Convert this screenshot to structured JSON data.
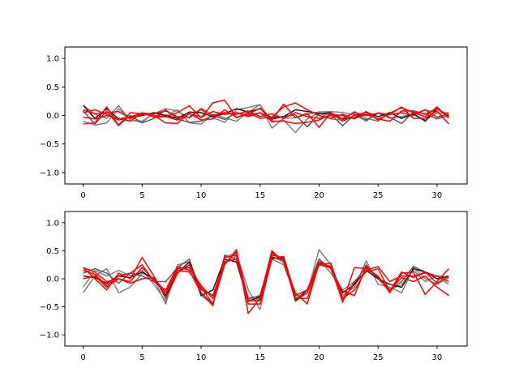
{
  "chart_data": [
    {
      "type": "line",
      "title": "",
      "xlabel": "",
      "ylabel": "",
      "xlim": [
        -1.55,
        32.55
      ],
      "ylim": [
        -1.2,
        1.2
      ],
      "xticks": [
        0,
        5,
        10,
        15,
        20,
        25,
        30
      ],
      "yticks": [
        -1.0,
        -0.5,
        0.0,
        0.5,
        1.0
      ],
      "ytick_labels": [
        "−1.0",
        "−0.5",
        "0.0",
        "0.5",
        "1.0"
      ],
      "grid": false,
      "series": [
        {
          "color": "#7f7f7f",
          "values": [
            0.18,
            0.02,
            -0.05,
            0.17,
            -0.08,
            -0.1,
            0.03,
            0.12,
            0.08,
            -0.05,
            0.1,
            -0.04,
            -0.12,
            0.1,
            0.14,
            0.19,
            -0.22,
            -0.05,
            -0.04,
            0.02,
            0.06,
            0.07,
            0.05,
            0.02,
            -0.1,
            0.05,
            -0.05,
            -0.02,
            0.03,
            0.1,
            0.05,
            0.02
          ]
        },
        {
          "color": "#7f7f7f",
          "values": [
            -0.1,
            -0.17,
            -0.13,
            0.12,
            -0.08,
            -0.12,
            0.04,
            0.0,
            0.1,
            -0.13,
            -0.15,
            0.02,
            -0.04,
            -0.1,
            0.06,
            0.19,
            -0.12,
            -0.08,
            -0.3,
            -0.06,
            0.05,
            -0.06,
            -0.08,
            0.07,
            -0.05,
            -0.1,
            0.05,
            -0.05,
            0.02,
            -0.08,
            0.04,
            0.05
          ]
        },
        {
          "color": "#595959",
          "values": [
            0.08,
            -0.15,
            0.08,
            -0.18,
            0.0,
            -0.13,
            -0.05,
            0.1,
            -0.06,
            -0.12,
            -0.1,
            0.0,
            -0.07,
            0.05,
            0.0,
            0.05,
            -0.03,
            -0.02,
            0.01,
            -0.2,
            0.03,
            0.02,
            -0.18,
            0.02,
            -0.08,
            0.04,
            -0.03,
            -0.14,
            0.06,
            0.03,
            -0.06,
            0.0
          ]
        },
        {
          "color": "#1a1a1a",
          "values": [
            0.18,
            -0.05,
            0.12,
            -0.06,
            -0.03,
            0.0,
            0.05,
            0.0,
            -0.05,
            0.06,
            0.05,
            -0.02,
            0.03,
            0.12,
            0.06,
            0.12,
            -0.06,
            -0.02,
            0.1,
            0.07,
            0.03,
            0.05,
            -0.06,
            -0.04,
            0.06,
            -0.02,
            0.05,
            -0.05,
            0.03,
            -0.1,
            0.12,
            -0.02
          ]
        },
        {
          "color": "#ff0000",
          "values": [
            0.1,
            0.03,
            0.05,
            0.07,
            -0.05,
            0.02,
            0.0,
            -0.02,
            0.05,
            0.17,
            -0.04,
            0.22,
            0.27,
            -0.04,
            0.05,
            -0.05,
            -0.03,
            0.15,
            0.22,
            0.1,
            0.0,
            -0.05,
            0.02,
            -0.06,
            0.07,
            -0.08,
            0.04,
            0.14,
            0.05,
            -0.02,
            0.15,
            -0.05
          ]
        },
        {
          "color": "#ff0000",
          "values": [
            -0.15,
            -0.13,
            0.15,
            -0.17,
            0.05,
            0.03,
            0.0,
            -0.13,
            -0.14,
            0.04,
            -0.08,
            -0.06,
            0.1,
            -0.03,
            0.02,
            0.13,
            -0.08,
            0.2,
            -0.04,
            0.04,
            -0.21,
            0.05,
            -0.1,
            0.0,
            0.05,
            -0.06,
            0.02,
            0.15,
            -0.05,
            -0.05,
            0.08,
            -0.15
          ]
        },
        {
          "color": "#ff0000",
          "values": [
            -0.03,
            -0.06,
            0.0,
            -0.05,
            -0.1,
            0.05,
            -0.03,
            -0.02,
            -0.08,
            0.03,
            -0.03,
            0.07,
            0.02,
            0.05,
            -0.02,
            0.05,
            -0.1,
            -0.1,
            -0.14,
            -0.12,
            -0.08,
            0.02,
            0.0,
            -0.05,
            0.02,
            -0.06,
            -0.1,
            0.08,
            0.08,
            0.02,
            0.12,
            0.0
          ]
        },
        {
          "color": "#ff0000",
          "values": [
            0.05,
            0.1,
            0.02,
            -0.08,
            -0.02,
            0.04,
            0.03,
            0.08,
            -0.02,
            -0.03,
            0.12,
            0.0,
            0.05,
            0.02,
            0.08,
            -0.02,
            0.03,
            -0.05,
            0.05,
            -0.02,
            -0.05,
            0.0,
            -0.05,
            0.05,
            0.0,
            0.04,
            0.02,
            0.05,
            0.0,
            0.1,
            -0.03,
            0.03
          ]
        }
      ]
    },
    {
      "type": "line",
      "title": "",
      "xlabel": "",
      "ylabel": "",
      "xlim": [
        -1.55,
        32.55
      ],
      "ylim": [
        -1.2,
        1.2
      ],
      "xticks": [
        0,
        5,
        10,
        15,
        20,
        25,
        30
      ],
      "yticks": [
        -1.0,
        -0.5,
        0.0,
        0.5,
        1.0
      ],
      "ytick_labels": [
        "−1.0",
        "−0.5",
        "0.0",
        "0.5",
        "1.0"
      ],
      "grid": false,
      "series": [
        {
          "color": "#7f7f7f",
          "values": [
            -0.25,
            0.05,
            0.18,
            -0.25,
            -0.15,
            0.1,
            0.0,
            -0.45,
            0.25,
            0.3,
            -0.3,
            -0.45,
            0.4,
            0.45,
            -0.2,
            -0.55,
            0.4,
            0.3,
            -0.35,
            -0.25,
            0.52,
            0.25,
            -0.3,
            -0.15,
            0.32,
            -0.1,
            -0.15,
            -0.25,
            0.2,
            0.0,
            -0.1,
            0.02
          ]
        },
        {
          "color": "#7f7f7f",
          "values": [
            -0.15,
            0.15,
            0.05,
            0.15,
            0.05,
            0.15,
            -0.1,
            -0.4,
            0.15,
            0.2,
            -0.2,
            -0.3,
            0.3,
            0.4,
            -0.35,
            -0.35,
            0.35,
            0.25,
            -0.3,
            -0.2,
            0.35,
            0.1,
            -0.2,
            -0.05,
            0.2,
            0.05,
            -0.2,
            -0.1,
            0.15,
            -0.05,
            0.05,
            -0.1
          ]
        },
        {
          "color": "#595959",
          "values": [
            0.1,
            0.18,
            0.1,
            -0.08,
            0.1,
            0.05,
            -0.05,
            -0.05,
            0.2,
            0.35,
            -0.25,
            -0.45,
            0.42,
            0.35,
            -0.35,
            -0.3,
            0.45,
            0.35,
            -0.4,
            -0.25,
            0.35,
            0.18,
            -0.35,
            -0.1,
            0.25,
            0.0,
            -0.2,
            -0.05,
            0.22,
            0.12,
            0.05,
            0.02
          ]
        },
        {
          "color": "#1a1a1a",
          "values": [
            0.05,
            0.02,
            -0.08,
            0.05,
            0.02,
            0.12,
            0.0,
            -0.3,
            0.1,
            0.3,
            -0.3,
            -0.2,
            0.35,
            0.3,
            -0.4,
            -0.32,
            0.38,
            0.35,
            -0.38,
            -0.2,
            0.3,
            0.2,
            -0.25,
            -0.1,
            0.15,
            0.0,
            -0.1,
            -0.15,
            0.18,
            0.12,
            0.0,
            0.05
          ]
        },
        {
          "color": "#ff0000",
          "values": [
            0.2,
            0.0,
            -0.2,
            0.1,
            0.0,
            0.38,
            0.05,
            -0.35,
            0.1,
            0.25,
            -0.15,
            -0.45,
            0.25,
            0.52,
            -0.62,
            -0.35,
            0.5,
            0.3,
            -0.25,
            -0.45,
            0.28,
            0.22,
            -0.42,
            0.2,
            0.18,
            0.05,
            -0.25,
            0.1,
            0.12,
            -0.28,
            -0.05,
            0.18
          ]
        },
        {
          "color": "#ff0000",
          "values": [
            0.15,
            0.08,
            -0.12,
            0.05,
            0.1,
            0.25,
            -0.05,
            -0.2,
            0.22,
            0.15,
            -0.25,
            -0.48,
            0.38,
            0.42,
            -0.45,
            -0.45,
            0.35,
            0.4,
            -0.3,
            -0.2,
            0.3,
            0.18,
            -0.22,
            -0.3,
            0.22,
            0.02,
            -0.2,
            0.02,
            -0.05,
            0.05,
            -0.15,
            -0.3
          ]
        },
        {
          "color": "#ff0000",
          "values": [
            0.2,
            0.12,
            -0.05,
            0.0,
            -0.05,
            0.2,
            -0.02,
            -0.25,
            0.15,
            0.12,
            -0.18,
            -0.3,
            0.3,
            0.35,
            -0.4,
            -0.38,
            0.42,
            0.38,
            -0.35,
            -0.35,
            0.25,
            0.28,
            -0.35,
            -0.2,
            0.15,
            0.22,
            -0.05,
            0.05,
            0.05,
            0.1,
            0.05,
            -0.05
          ]
        },
        {
          "color": "#ff0000",
          "values": [
            0.0,
            0.05,
            -0.15,
            0.0,
            -0.08,
            0.0,
            0.02,
            -0.25,
            0.18,
            0.2,
            -0.12,
            -0.35,
            0.28,
            0.48,
            -0.38,
            -0.38,
            0.48,
            0.3,
            -0.35,
            -0.25,
            0.25,
            0.2,
            -0.4,
            -0.05,
            0.12,
            0.18,
            -0.22,
            0.12,
            0.02,
            0.12,
            -0.08,
            0.05
          ]
        }
      ]
    }
  ]
}
